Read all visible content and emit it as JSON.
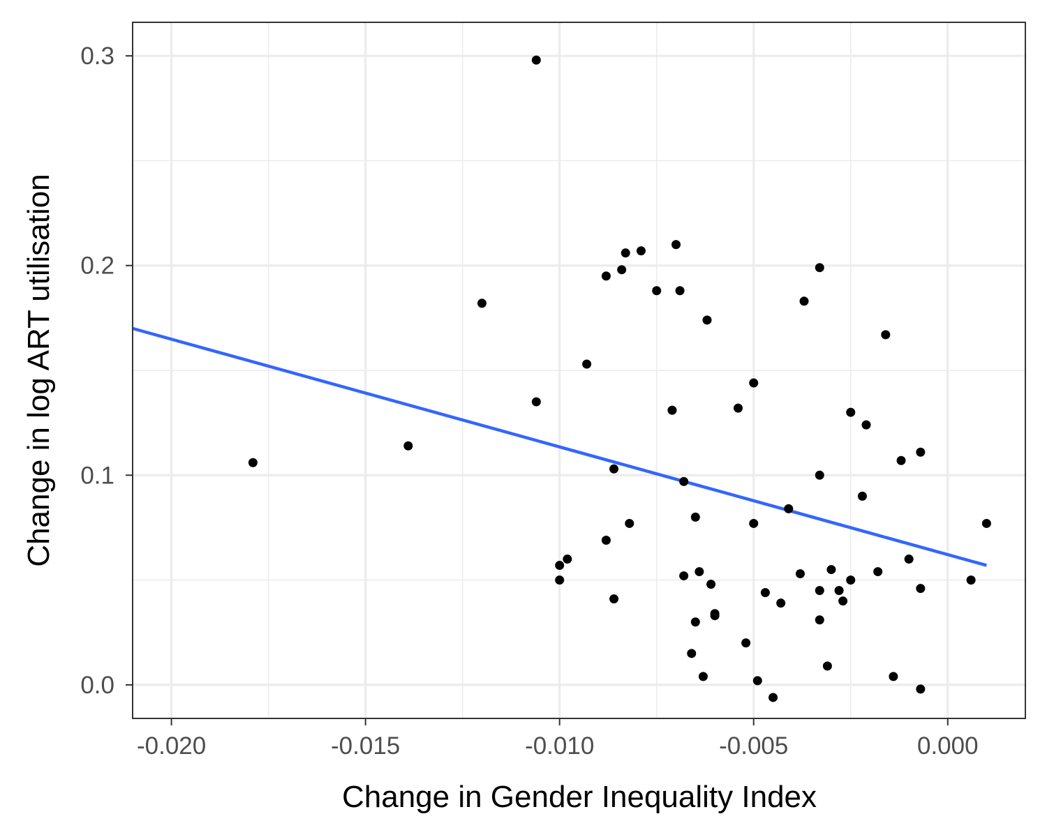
{
  "chart_data": {
    "type": "scatter",
    "title": "",
    "xlabel": "Change in Gender Inequality Index",
    "ylabel": "Change in log ART utilisation",
    "xlim": [
      -0.021,
      0.002
    ],
    "ylim": [
      -0.016,
      0.316
    ],
    "x_ticks": [
      -0.02,
      -0.015,
      -0.01,
      -0.005,
      0.0
    ],
    "x_tick_labels": [
      "-0.020",
      "-0.015",
      "-0.010",
      "-0.005",
      "0.000"
    ],
    "y_ticks": [
      0.0,
      0.1,
      0.2,
      0.3
    ],
    "y_tick_labels": [
      "0.0",
      "0.1",
      "0.2",
      "0.3"
    ],
    "grid": true,
    "legend": "none",
    "colors": {
      "points": "#000000",
      "fit_line": "#3366ff",
      "grid": "#ebebeb",
      "panel_border": "#333333"
    },
    "fit_line": {
      "x": [
        -0.021,
        0.001
      ],
      "y": [
        0.17,
        0.057
      ]
    },
    "points": [
      {
        "x": -0.0106,
        "y": 0.298
      },
      {
        "x": -0.0179,
        "y": 0.106
      },
      {
        "x": -0.0139,
        "y": 0.114
      },
      {
        "x": -0.012,
        "y": 0.182
      },
      {
        "x": -0.0106,
        "y": 0.135
      },
      {
        "x": -0.0093,
        "y": 0.153
      },
      {
        "x": -0.0088,
        "y": 0.195
      },
      {
        "x": -0.0084,
        "y": 0.198
      },
      {
        "x": -0.0083,
        "y": 0.206
      },
      {
        "x": -0.0079,
        "y": 0.207
      },
      {
        "x": -0.007,
        "y": 0.21
      },
      {
        "x": -0.0075,
        "y": 0.188
      },
      {
        "x": -0.0069,
        "y": 0.188
      },
      {
        "x": -0.0062,
        "y": 0.174
      },
      {
        "x": -0.0071,
        "y": 0.131
      },
      {
        "x": -0.0086,
        "y": 0.103
      },
      {
        "x": -0.0068,
        "y": 0.097
      },
      {
        "x": -0.0082,
        "y": 0.077
      },
      {
        "x": -0.0088,
        "y": 0.069
      },
      {
        "x": -0.0098,
        "y": 0.06
      },
      {
        "x": -0.01,
        "y": 0.057
      },
      {
        "x": -0.01,
        "y": 0.05
      },
      {
        "x": -0.0086,
        "y": 0.041
      },
      {
        "x": -0.0065,
        "y": 0.08
      },
      {
        "x": -0.0064,
        "y": 0.054
      },
      {
        "x": -0.0068,
        "y": 0.052
      },
      {
        "x": -0.0061,
        "y": 0.048
      },
      {
        "x": -0.006,
        "y": 0.034
      },
      {
        "x": -0.006,
        "y": 0.033
      },
      {
        "x": -0.0065,
        "y": 0.03
      },
      {
        "x": -0.0066,
        "y": 0.015
      },
      {
        "x": -0.0063,
        "y": 0.004
      },
      {
        "x": -0.0054,
        "y": 0.132
      },
      {
        "x": -0.005,
        "y": 0.144
      },
      {
        "x": -0.005,
        "y": 0.077
      },
      {
        "x": -0.0052,
        "y": 0.02
      },
      {
        "x": -0.0049,
        "y": 0.002
      },
      {
        "x": -0.0045,
        "y": -0.006
      },
      {
        "x": -0.0047,
        "y": 0.044
      },
      {
        "x": -0.0043,
        "y": 0.039
      },
      {
        "x": -0.0041,
        "y": 0.084
      },
      {
        "x": -0.0038,
        "y": 0.053
      },
      {
        "x": -0.0037,
        "y": 0.183
      },
      {
        "x": -0.0033,
        "y": 0.199
      },
      {
        "x": -0.0033,
        "y": 0.1
      },
      {
        "x": -0.0033,
        "y": 0.045
      },
      {
        "x": -0.0033,
        "y": 0.031
      },
      {
        "x": -0.003,
        "y": 0.055
      },
      {
        "x": -0.0028,
        "y": 0.045
      },
      {
        "x": -0.0027,
        "y": 0.04
      },
      {
        "x": -0.0031,
        "y": 0.009
      },
      {
        "x": -0.0025,
        "y": 0.13
      },
      {
        "x": -0.0021,
        "y": 0.124
      },
      {
        "x": -0.0022,
        "y": 0.09
      },
      {
        "x": -0.0025,
        "y": 0.05
      },
      {
        "x": -0.0018,
        "y": 0.054
      },
      {
        "x": -0.0016,
        "y": 0.167
      },
      {
        "x": -0.0012,
        "y": 0.107
      },
      {
        "x": -0.0007,
        "y": 0.111
      },
      {
        "x": -0.001,
        "y": 0.06
      },
      {
        "x": -0.0007,
        "y": 0.046
      },
      {
        "x": -0.0014,
        "y": 0.004
      },
      {
        "x": -0.0007,
        "y": -0.002
      },
      {
        "x": 0.001,
        "y": 0.077
      },
      {
        "x": 0.0006,
        "y": 0.05
      }
    ]
  }
}
